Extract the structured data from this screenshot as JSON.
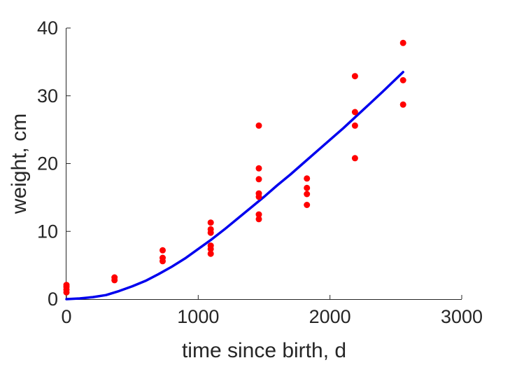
{
  "chart_data": {
    "type": "scatter",
    "title": "",
    "xlabel": "time since birth, d",
    "ylabel": "weight, cm",
    "xlim": [
      0,
      3000
    ],
    "ylim": [
      0,
      40
    ],
    "xticks": [
      0,
      1000,
      2000,
      3000
    ],
    "yticks": [
      0,
      10,
      20,
      30,
      40
    ],
    "grid": false,
    "legend": "none",
    "series": [
      {
        "type": "scatter",
        "color": "#ff0000",
        "points": [
          [
            0,
            1.0
          ],
          [
            0,
            1.4
          ],
          [
            0,
            1.8
          ],
          [
            0,
            2.1
          ],
          [
            365,
            2.8
          ],
          [
            365,
            3.2
          ],
          [
            730,
            5.6
          ],
          [
            730,
            6.1
          ],
          [
            730,
            7.2
          ],
          [
            1095,
            6.7
          ],
          [
            1095,
            7.4
          ],
          [
            1095,
            7.9
          ],
          [
            1095,
            9.8
          ],
          [
            1095,
            10.3
          ],
          [
            1095,
            11.3
          ],
          [
            1460,
            11.8
          ],
          [
            1460,
            12.5
          ],
          [
            1460,
            15.1
          ],
          [
            1460,
            15.6
          ],
          [
            1460,
            17.7
          ],
          [
            1460,
            19.3
          ],
          [
            1460,
            25.6
          ],
          [
            1825,
            13.9
          ],
          [
            1825,
            15.5
          ],
          [
            1825,
            16.4
          ],
          [
            1825,
            17.8
          ],
          [
            2190,
            20.8
          ],
          [
            2190,
            25.6
          ],
          [
            2190,
            27.6
          ],
          [
            2190,
            32.9
          ],
          [
            2555,
            28.7
          ],
          [
            2555,
            32.3
          ],
          [
            2555,
            37.8
          ]
        ]
      },
      {
        "type": "line",
        "color": "#0000ee",
        "x": [
          0,
          100,
          200,
          300,
          400,
          500,
          600,
          700,
          800,
          900,
          1000,
          1100,
          1200,
          1300,
          1400,
          1500,
          1600,
          1700,
          1800,
          1900,
          2000,
          2100,
          2200,
          2300,
          2400,
          2555
        ],
        "y": [
          0.0,
          0.1,
          0.3,
          0.6,
          1.2,
          1.9,
          2.7,
          3.7,
          4.8,
          6.0,
          7.4,
          8.8,
          10.3,
          11.9,
          13.5,
          15.1,
          16.8,
          18.4,
          20.1,
          21.8,
          23.5,
          25.2,
          27.0,
          28.8,
          30.6,
          33.5
        ]
      }
    ]
  }
}
